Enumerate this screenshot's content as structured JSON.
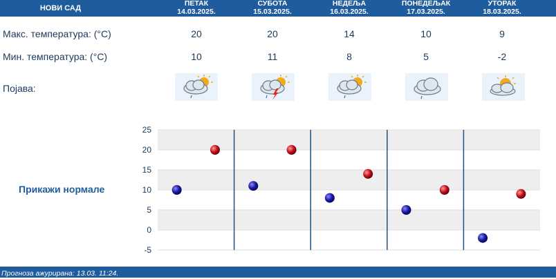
{
  "header": {
    "city": "НОВИ САД",
    "days": [
      {
        "name": "ПЕТАК",
        "date": "14.03.2025."
      },
      {
        "name": "СУБОТА",
        "date": "15.03.2025."
      },
      {
        "name": "НЕДЕЉА",
        "date": "16.03.2025."
      },
      {
        "name": "ПОНЕДЕЉАК",
        "date": "17.03.2025."
      },
      {
        "name": "УТОРАК",
        "date": "18.03.2025."
      }
    ]
  },
  "rows": {
    "max_label": "Макс. температура: (°C)",
    "min_label": "Мин. температура: (°C)",
    "phenomenon_label": "Појава:",
    "max_values": [
      "20",
      "20",
      "14",
      "10",
      "9"
    ],
    "min_values": [
      "10",
      "11",
      "8",
      "5",
      "-2"
    ],
    "icons": [
      "partly-cloudy-rain-icon",
      "thunderstorm-icon",
      "partly-cloudy-rain-icon",
      "cloudy-rain-icon",
      "partly-cloudy-icon"
    ]
  },
  "normals_link": "Прикажи нормале",
  "footer": {
    "updated": "Прогноза ажурирана:  13.03.  11:24."
  },
  "colors": {
    "header_bg": "#1f5c9e",
    "min_marker": "#1a1aa0",
    "max_marker": "#c0101a",
    "band": "#eeeeee"
  },
  "chart_data": {
    "type": "scatter",
    "categories": [
      "14.03.2025.",
      "15.03.2025.",
      "16.03.2025.",
      "17.03.2025.",
      "18.03.2025."
    ],
    "series": [
      {
        "values": [
          10,
          11,
          8,
          5,
          -2
        ]
      },
      {
        "values": [
          20,
          20,
          14,
          10,
          9
        ]
      }
    ],
    "ylim": [
      -5,
      25
    ],
    "yticks": [
      "25",
      "20",
      "15",
      "10",
      "5",
      "0",
      "-5"
    ],
    "grid": true
  }
}
